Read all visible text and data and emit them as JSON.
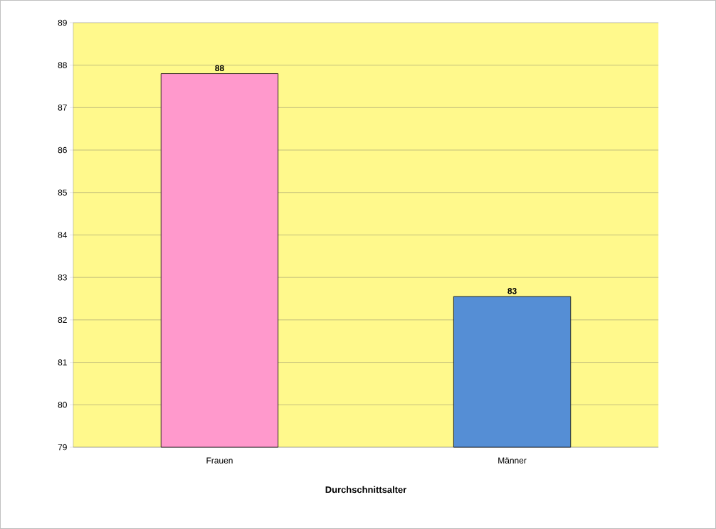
{
  "chart_data": {
    "type": "bar",
    "xlabel": "Durchschnittsalter",
    "categories": [
      "Frauen",
      "Männer"
    ],
    "values": [
      87.8,
      82.55
    ],
    "colors": [
      "#ff99cc",
      "#558ed5"
    ],
    "value_labels": [
      "88",
      "83"
    ],
    "ylim": [
      79,
      89
    ],
    "yticks": [
      79,
      80,
      81,
      82,
      83,
      84,
      85,
      86,
      87,
      88,
      89
    ],
    "grid": "y"
  }
}
